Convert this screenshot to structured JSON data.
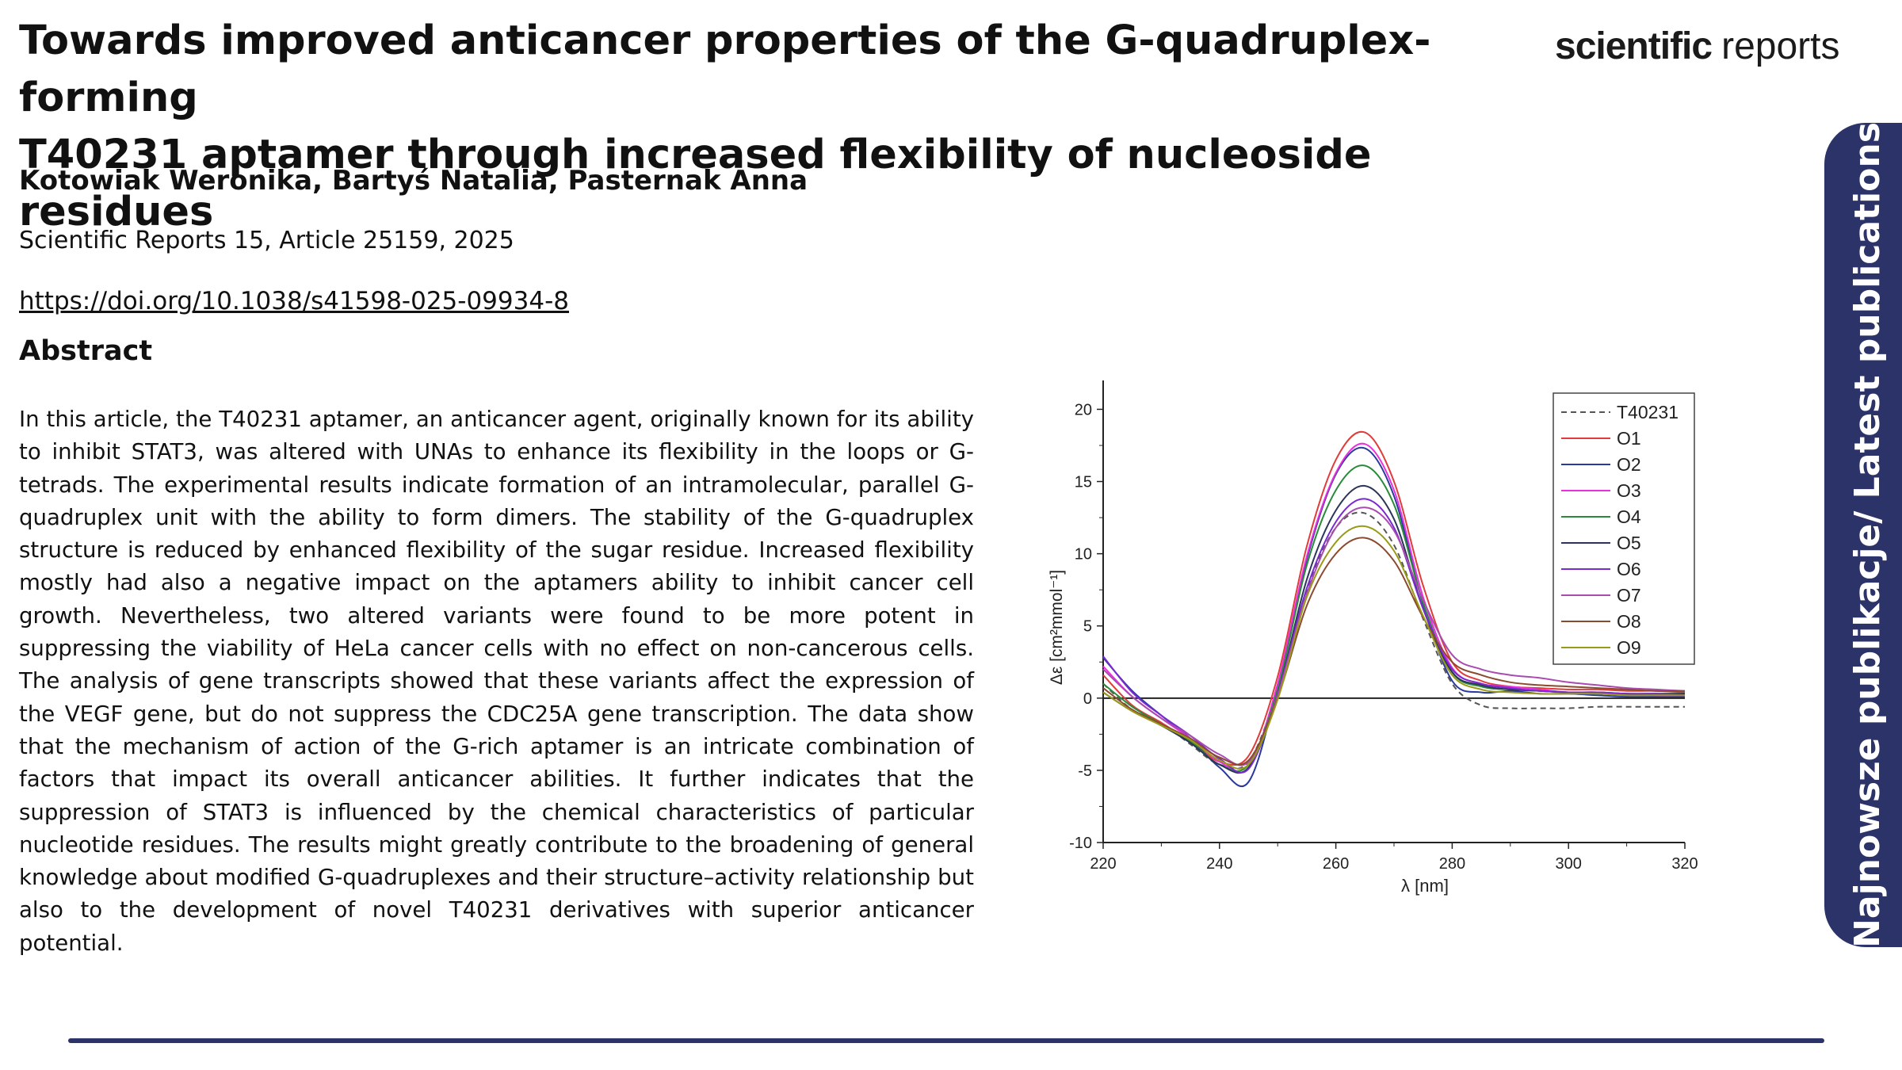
{
  "paper": {
    "title_line1": "Towards improved anticancer properties of the G-quadruplex-forming",
    "title_line2": "T40231 aptamer through increased flexibility of nucleoside residues",
    "authors": "Kotowiak Weronika, Bartyś Natalia, Pasternak Anna",
    "journal": "Scientific Reports 15, Article 25159, 2025",
    "doi": "https://doi.org/10.1038/s41598-025-09934-8",
    "abstract_heading": "Abstract",
    "abstract": "In this article, the T40231 aptamer, an anticancer agent, originally known for its ability to inhibit STAT3, was altered with UNAs to enhance its flexibility in the loops or G-tetrads. The experimental results indicate formation of an intramolecular, parallel G-quadruplex unit with the ability to form dimers. The stability of the G-quadruplex structure is reduced by enhanced flexibility of the sugar residue. Increased flexibility mostly had also a negative impact on the aptamers ability to inhibit cancer cell growth. Nevertheless, two altered variants were found to be more potent in suppressing the viability of HeLa cancer cells with no effect on non-cancerous cells. The analysis of gene transcripts showed that these variants affect the expression of the VEGF gene, but do not suppress the CDC25A gene transcription. The data show that the mechanism of action of the G-rich aptamer is an intricate combination of factors that impact its overall anticancer abilities. It further indicates that the suppression of STAT3 is influenced by the chemical characteristics of particular nucleotide residues. The results might greatly contribute to the broadening of general knowledge about modified G-quadruplexes and their structure–activity relationship but also to the development of novel T40231 derivatives with superior anticancer potential."
  },
  "brand": {
    "bold": "scientific",
    "light": "reports"
  },
  "side_tab": {
    "label": "Najnowsze publikacje/ Latest publications"
  },
  "colors": {
    "navy": "#2b3368"
  },
  "chart_data": {
    "type": "line",
    "xlabel": "λ [nm]",
    "ylabel": "Δε [cm²mmol⁻¹]",
    "xlim": [
      220,
      320
    ],
    "ylim": [
      -10,
      22
    ],
    "xticks": [
      220,
      240,
      260,
      280,
      300,
      320
    ],
    "yticks": [
      -10,
      -5,
      0,
      5,
      10,
      15,
      20
    ],
    "x": [
      220,
      225,
      230,
      235,
      240,
      245,
      250,
      255,
      260,
      265,
      270,
      275,
      280,
      285,
      290,
      295,
      300,
      305,
      310,
      315,
      320
    ],
    "legend_position": "top-right",
    "grid": false,
    "series": [
      {
        "name": "T40231",
        "color": "#555555",
        "dashed": true,
        "values": [
          1.0,
          -0.8,
          -1.7,
          -3.2,
          -4.6,
          -4.4,
          0.5,
          7.5,
          11.8,
          12.8,
          10.6,
          5.5,
          1.0,
          -0.5,
          -0.7,
          -0.7,
          -0.7,
          -0.6,
          -0.6,
          -0.6,
          -0.6
        ]
      },
      {
        "name": "O1",
        "color": "#e03c3c",
        "values": [
          1.6,
          -0.5,
          -1.7,
          -3.0,
          -4.4,
          -4.0,
          1.5,
          10.5,
          16.5,
          18.4,
          15.0,
          7.8,
          2.5,
          1.2,
          0.8,
          0.7,
          0.6,
          0.6,
          0.5,
          0.5,
          0.4
        ]
      },
      {
        "name": "O2",
        "color": "#2a3a9c",
        "values": [
          2.8,
          0.5,
          -1.2,
          -2.8,
          -4.8,
          -5.8,
          0.8,
          9.6,
          15.5,
          17.3,
          14.0,
          6.5,
          1.2,
          0.4,
          0.5,
          0.3,
          0.3,
          0.2,
          0.1,
          0.1,
          0.1
        ]
      },
      {
        "name": "O3",
        "color": "#e830e0",
        "values": [
          2.2,
          0.1,
          -1.4,
          -2.8,
          -4.4,
          -4.8,
          1.0,
          9.8,
          15.6,
          17.6,
          14.4,
          7.0,
          2.1,
          1.0,
          0.8,
          0.6,
          0.4,
          0.4,
          0.3,
          0.2,
          0.2
        ]
      },
      {
        "name": "O4",
        "color": "#2a8a3a",
        "values": [
          1.0,
          -0.6,
          -1.8,
          -3.0,
          -4.6,
          -4.6,
          0.6,
          9.2,
          14.4,
          16.1,
          13.4,
          6.6,
          1.8,
          0.8,
          0.6,
          0.5,
          0.4,
          0.3,
          0.3,
          0.3,
          0.3
        ]
      },
      {
        "name": "O5",
        "color": "#2c3458",
        "values": [
          0.4,
          -0.9,
          -1.9,
          -3.1,
          -4.6,
          -4.8,
          0.3,
          8.2,
          13.0,
          14.7,
          12.4,
          6.2,
          1.8,
          0.9,
          0.6,
          0.5,
          0.4,
          0.4,
          0.3,
          0.3,
          0.3
        ]
      },
      {
        "name": "O6",
        "color": "#7a2ad0",
        "values": [
          2.9,
          0.4,
          -1.2,
          -2.6,
          -4.2,
          -4.9,
          0.3,
          7.6,
          12.2,
          13.8,
          11.8,
          6.2,
          2.0,
          1.0,
          0.7,
          0.5,
          0.4,
          0.4,
          0.3,
          0.3,
          0.2
        ]
      },
      {
        "name": "O7",
        "color": "#a84cb0",
        "values": [
          2.0,
          0.1,
          -1.4,
          -2.6,
          -3.9,
          -4.4,
          0.2,
          7.2,
          11.8,
          13.2,
          11.6,
          6.8,
          3.0,
          2.0,
          1.6,
          1.4,
          1.1,
          0.9,
          0.7,
          0.6,
          0.5
        ]
      },
      {
        "name": "O8",
        "color": "#8a4a30",
        "values": [
          0.7,
          -0.8,
          -1.8,
          -2.8,
          -4.1,
          -4.3,
          0.0,
          6.4,
          10.0,
          11.1,
          9.5,
          5.6,
          2.5,
          1.6,
          1.1,
          0.9,
          0.8,
          0.7,
          0.6,
          0.5,
          0.5
        ]
      },
      {
        "name": "O9",
        "color": "#9a9a18",
        "values": [
          0.4,
          -0.9,
          -1.9,
          -2.9,
          -4.3,
          -4.6,
          -0.1,
          7.0,
          10.8,
          11.9,
          10.2,
          5.7,
          1.6,
          0.6,
          0.4,
          0.3,
          0.3,
          0.3,
          0.2,
          0.2,
          0.2
        ]
      }
    ]
  }
}
